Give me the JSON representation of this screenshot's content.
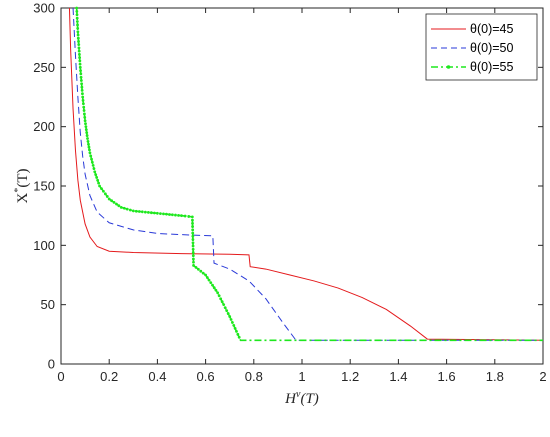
{
  "chart_data": {
    "type": "line",
    "xlabel": {
      "base": "H",
      "sup": "ν",
      "tail": "(T)"
    },
    "ylabel": {
      "base": "X",
      "sup": "*",
      "tail": "(T)"
    },
    "xlim": [
      0,
      2
    ],
    "ylim": [
      0,
      300
    ],
    "xticks": [
      "0",
      "0.2",
      "0.4",
      "0.6",
      "0.8",
      "1",
      "1.2",
      "1.4",
      "1.6",
      "1.8",
      "2"
    ],
    "yticks": [
      "0",
      "50",
      "100",
      "150",
      "200",
      "250",
      "300"
    ],
    "grid": false,
    "legend_position": "top-right",
    "series": [
      {
        "name": "θ(0)=45",
        "color": "#e41a1c",
        "style": "solid",
        "points": [
          [
            0.035,
            300
          ],
          [
            0.04,
            265
          ],
          [
            0.05,
            215
          ],
          [
            0.06,
            180
          ],
          [
            0.07,
            155
          ],
          [
            0.08,
            138
          ],
          [
            0.1,
            118
          ],
          [
            0.12,
            107
          ],
          [
            0.15,
            99
          ],
          [
            0.2,
            95
          ],
          [
            0.3,
            94
          ],
          [
            0.5,
            93
          ],
          [
            0.7,
            92.5
          ],
          [
            0.78,
            92
          ],
          [
            0.785,
            82
          ],
          [
            0.85,
            80
          ],
          [
            0.95,
            75
          ],
          [
            1.05,
            70
          ],
          [
            1.15,
            64
          ],
          [
            1.25,
            56
          ],
          [
            1.35,
            46
          ],
          [
            1.45,
            32
          ],
          [
            1.52,
            21
          ],
          [
            2.0,
            20
          ]
        ]
      },
      {
        "name": "θ(0)=50",
        "color": "#2a3ad8",
        "style": "dashed",
        "points": [
          [
            0.05,
            300
          ],
          [
            0.06,
            260
          ],
          [
            0.07,
            225
          ],
          [
            0.08,
            195
          ],
          [
            0.09,
            175
          ],
          [
            0.1,
            160
          ],
          [
            0.12,
            142
          ],
          [
            0.15,
            128
          ],
          [
            0.2,
            119
          ],
          [
            0.3,
            113
          ],
          [
            0.4,
            110
          ],
          [
            0.5,
            109
          ],
          [
            0.63,
            108
          ],
          [
            0.635,
            85
          ],
          [
            0.7,
            80
          ],
          [
            0.78,
            70
          ],
          [
            0.85,
            55
          ],
          [
            0.92,
            35
          ],
          [
            0.975,
            20
          ],
          [
            2.0,
            20
          ]
        ]
      },
      {
        "name": "θ(0)=55",
        "color": "#1ee81e",
        "style": "dashdot-marker",
        "points": [
          [
            0.065,
            300
          ],
          [
            0.07,
            280
          ],
          [
            0.08,
            250
          ],
          [
            0.09,
            225
          ],
          [
            0.1,
            205
          ],
          [
            0.11,
            190
          ],
          [
            0.12,
            178
          ],
          [
            0.14,
            162
          ],
          [
            0.16,
            150
          ],
          [
            0.2,
            139
          ],
          [
            0.25,
            132
          ],
          [
            0.3,
            129
          ],
          [
            0.4,
            127
          ],
          [
            0.5,
            125
          ],
          [
            0.545,
            124
          ],
          [
            0.55,
            83
          ],
          [
            0.6,
            75
          ],
          [
            0.65,
            60
          ],
          [
            0.7,
            40
          ],
          [
            0.745,
            20
          ],
          [
            2.0,
            20
          ]
        ]
      }
    ]
  }
}
